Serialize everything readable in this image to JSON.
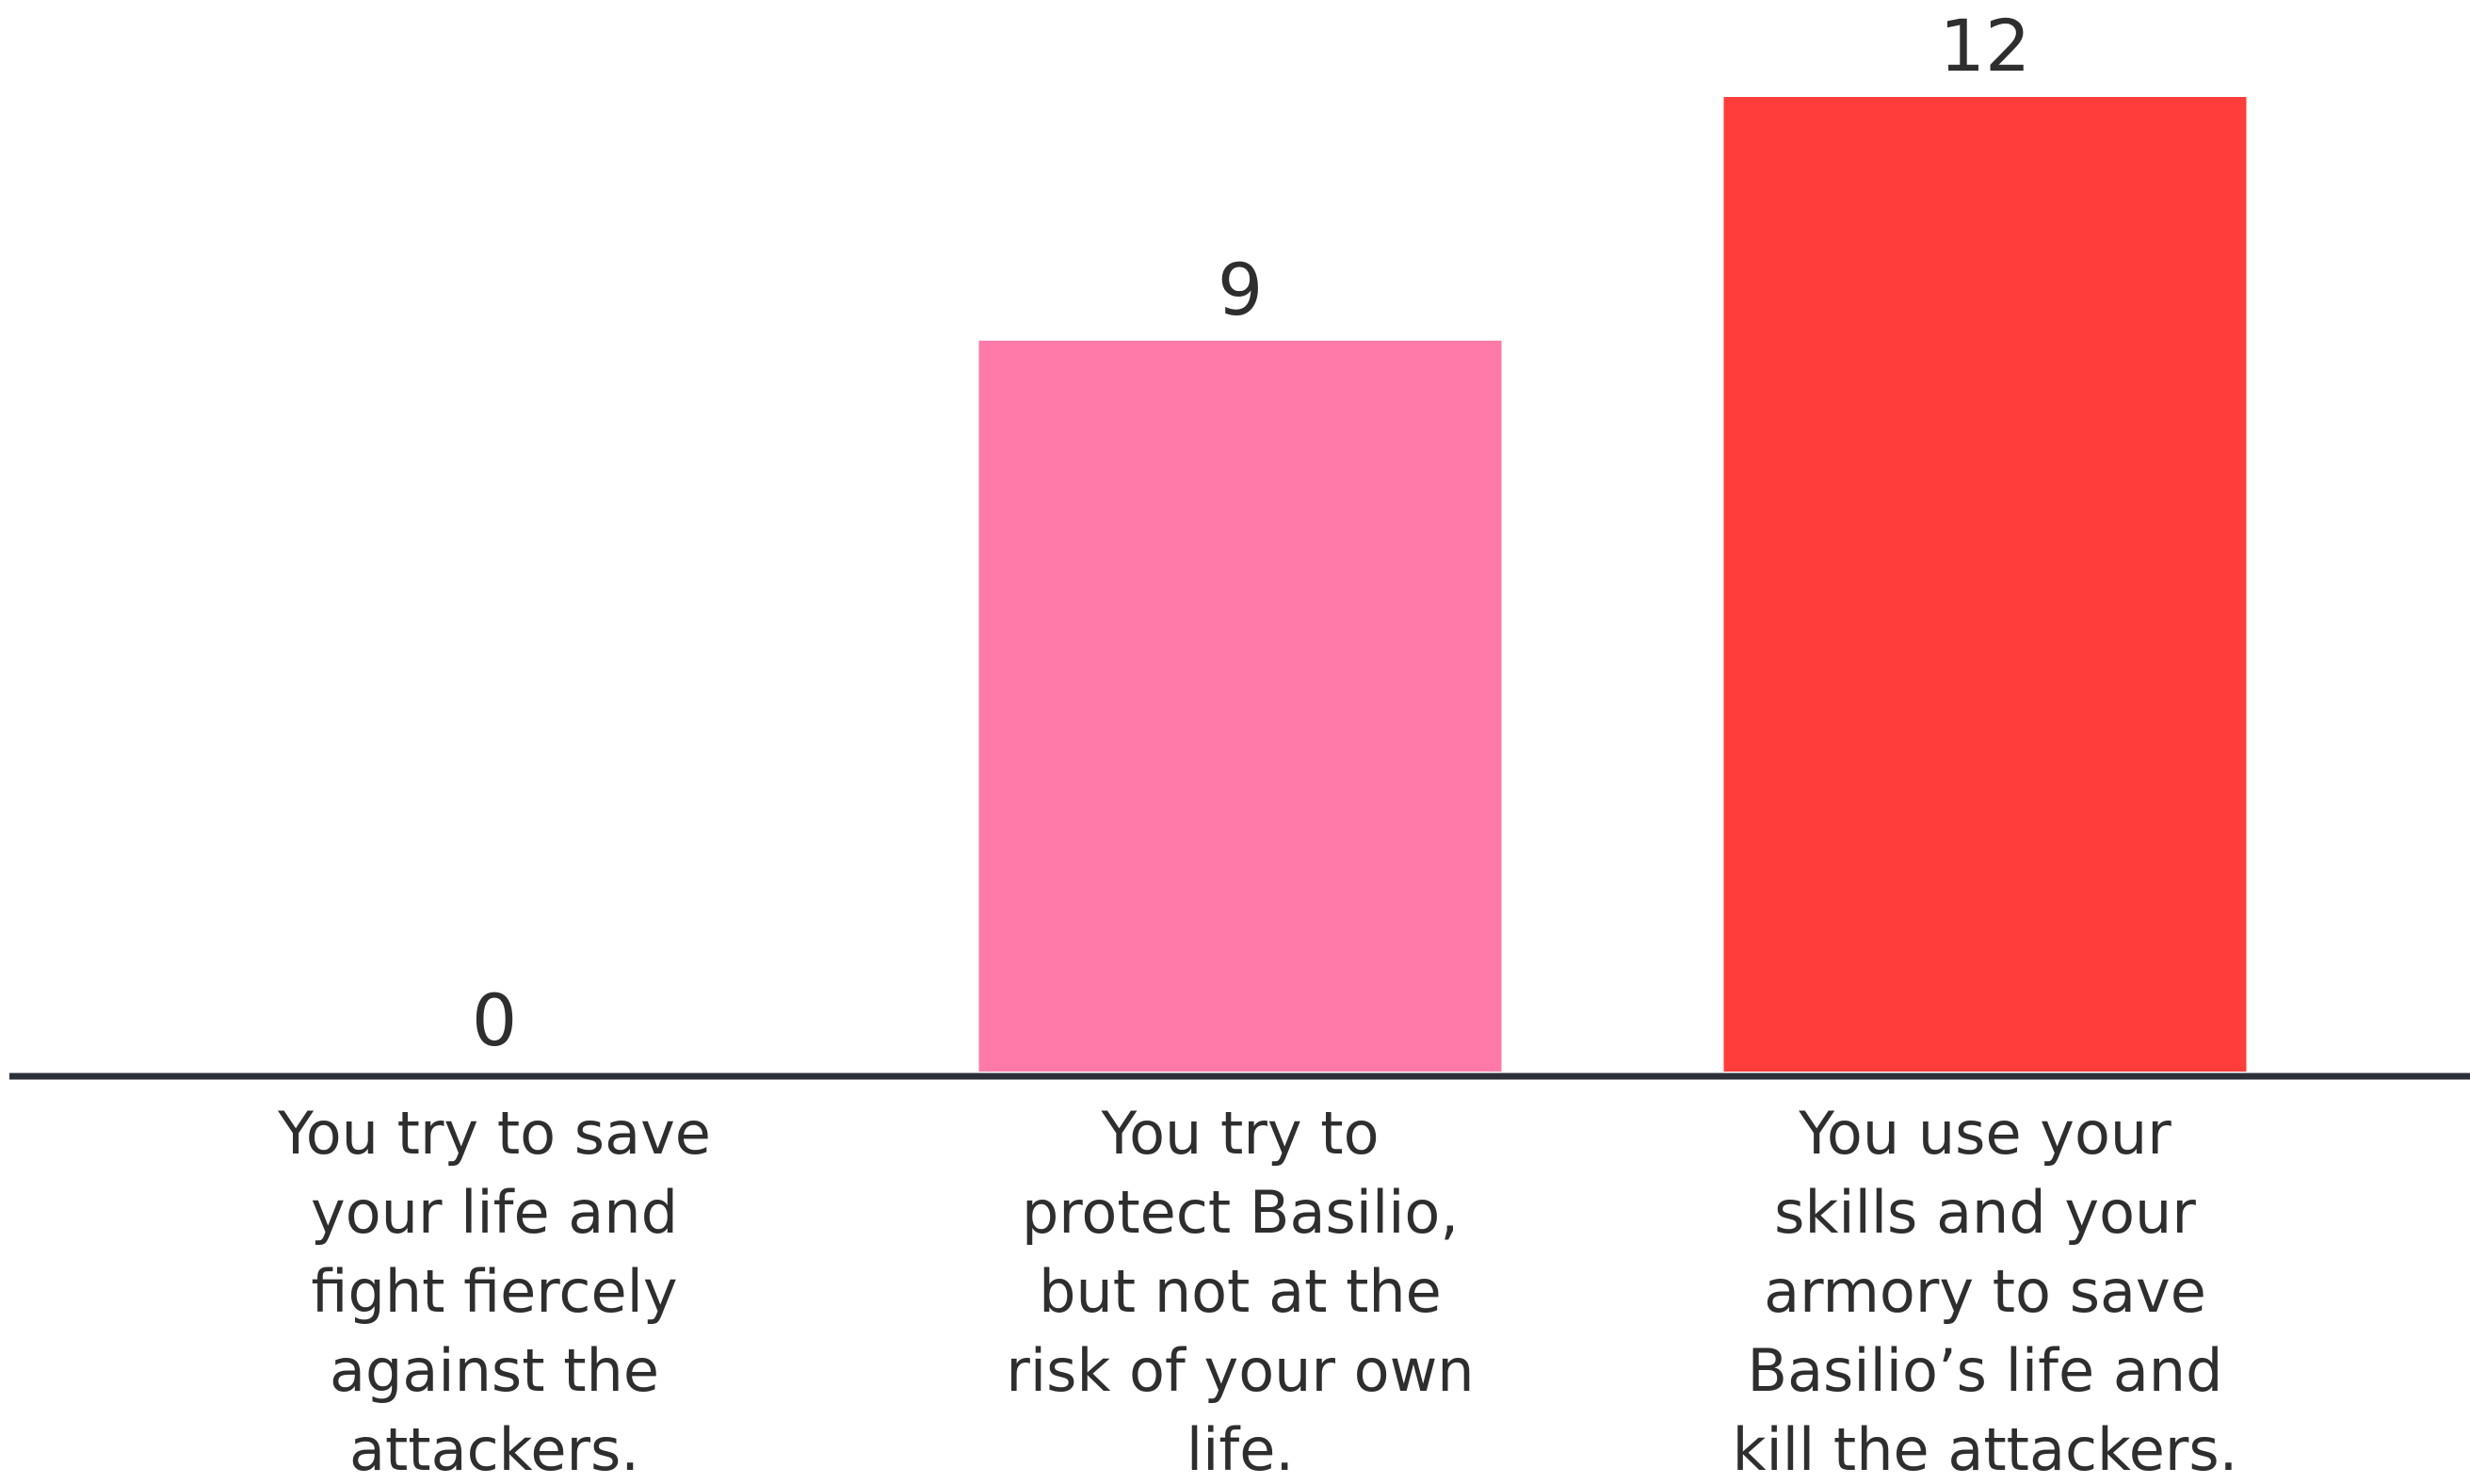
{
  "chart_data": {
    "type": "bar",
    "title": "",
    "xlabel": "",
    "ylabel": "",
    "categories": [
      "You try to save your life and fight fiercely against the attackers.",
      "You try to protect Basilio, but not at the risk of your own life.",
      "You use your skills and your armory to save Basilio’s life and kill the attackers."
    ],
    "category_lines": [
      [
        "You try to save",
        "your life and",
        "fight fiercely",
        "against the",
        "attackers."
      ],
      [
        "You try to",
        "protect Basilio,",
        "but not at the",
        "risk of your own",
        "life."
      ],
      [
        "You use your",
        "skills and your",
        "armory to save",
        "Basilio’s life and",
        "kill the attackers."
      ]
    ],
    "values": [
      0,
      9,
      12
    ],
    "ylim": [
      0,
      12
    ],
    "grid": false,
    "legend": "none",
    "colors": [
      "#ff7aa8",
      "#ff7aa8",
      "#ff3d3b"
    ],
    "axis_color": "#2c3038",
    "text_color": "#2e2e2e"
  }
}
